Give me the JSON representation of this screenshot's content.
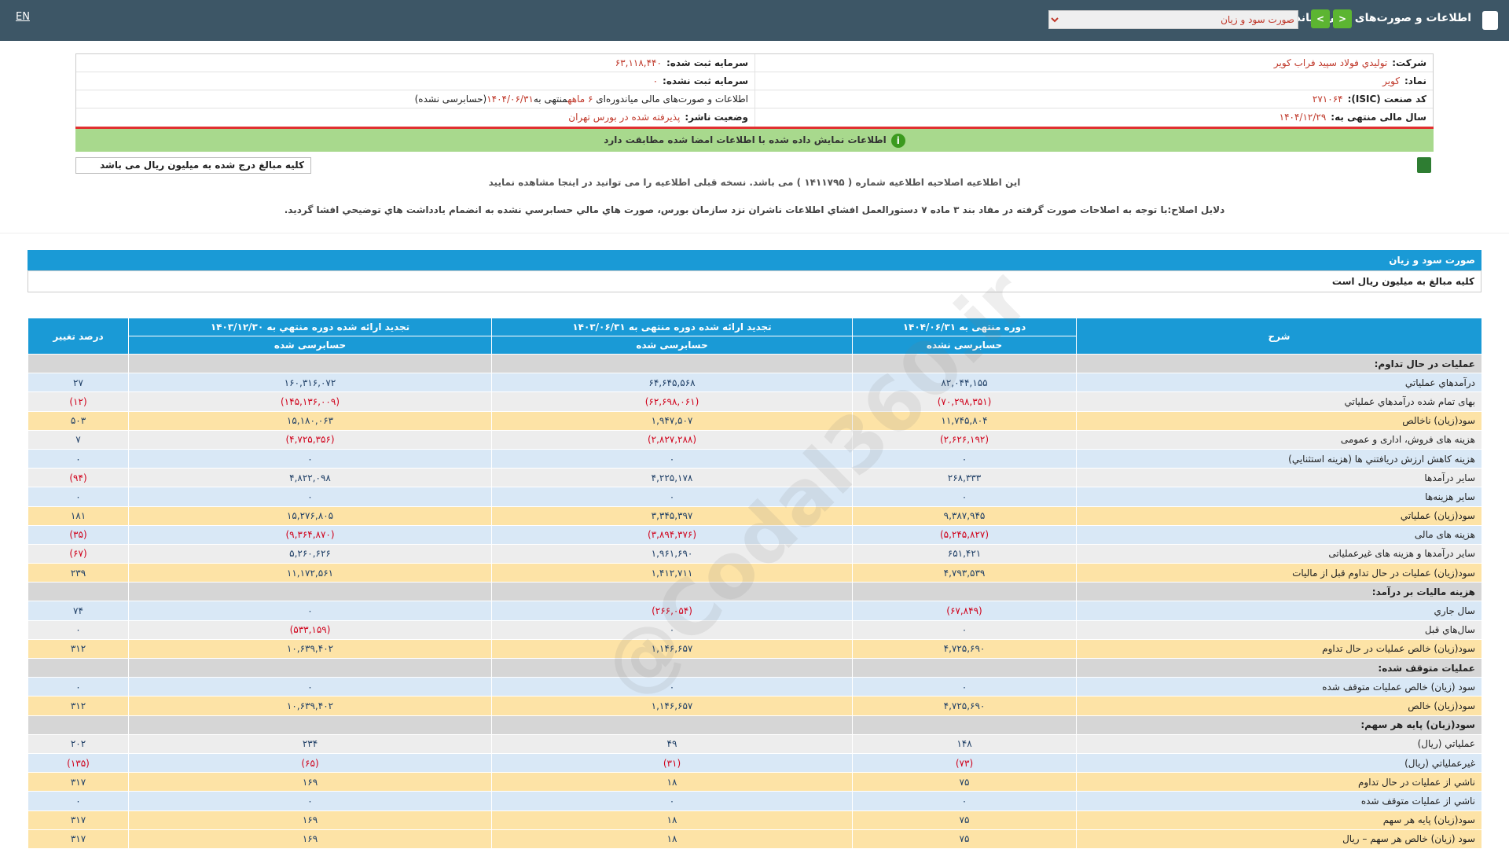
{
  "header": {
    "title": "اطلاعات و صورت‌های مالی میاندوره‌ای",
    "report_select": "صورت سود و زیان",
    "language": "EN"
  },
  "company_info": {
    "company_label": "شرکت:",
    "company": "توليدي فولاد سپيد فراب كوير",
    "symbol_label": "نماد:",
    "symbol": "کویر",
    "isic_label": "کد صنعت (ISIC):",
    "isic": "۲۷۱۰۶۴",
    "fiscal_year_label": "سال مالی منتهی به:",
    "fiscal_year": "۱۴۰۴/۱۲/۲۹",
    "registered_capital_label": "سرمایه ثبت شده:",
    "registered_capital": "۶۳,۱۱۸,۴۴۰",
    "unregistered_capital_label": "سرمایه ثبت نشده:",
    "unregistered_capital": "۰",
    "report_label": "اطلاعات و صورت‌های مالی میاندوره‌ای",
    "report_period": "۶ ماهه",
    "report_end_label": "منتهی به",
    "report_end": "۱۴۰۴/۰۶/۳۱",
    "report_status": "(حسابرسی نشده)",
    "publisher_status_label": "وضعیت ناشر:",
    "publisher_status": "پذیرفته شده در بورس تهران"
  },
  "verification": "اطلاعات نمایش داده شده با اطلاعات امضا شده مطابقت دارد",
  "units_box": "کلیه مبالغ درج شده به میلیون ریال می باشد",
  "correction_notice": "این اطلاعیه اصلاحیه اطلاعیه شماره ( ۱۴۱۱۷۹۵ ) می باشد. نسخه قبلی اطلاعیه را می توانید در اینجا مشاهده نمایید",
  "correction_reason": "دلایل اصلاح:با توجه به اصلاحات صورت گرفته در مفاد بند ۳ ماده ۷ دستورالعمل افشاي اطلاعات ناشران نزد سازمان بورس، صورت هاي مالي حسابرسي نشده به انضمام يادداشت هاي توضيحي افشا گرديد.",
  "watermark": "@Codal360.ir",
  "statement": {
    "title": "صورت سود و زیان",
    "units": "کلیه مبالغ به میلیون ریال است",
    "columns": [
      {
        "title": "شرح"
      },
      {
        "title": "دوره منتهی به ۱۴۰۴/۰۶/۳۱",
        "status": "حسابرسی نشده"
      },
      {
        "title": "تجدید ارائه شده دوره منتهی به ۱۴۰۳/۰۶/۳۱",
        "status": "حسابرسی شده"
      },
      {
        "title": "تجدید ارائه شده دوره منتهي به ۱۴۰۳/۱۲/۳۰",
        "status": "حسابرسی شده"
      },
      {
        "title": "درصد تغییر"
      }
    ],
    "rows": [
      {
        "label": "عمليات در حال تداوم:",
        "color": "#d6d6d6"
      },
      {
        "label": "درآمدهاي عملياتي",
        "values": [
          "۸۲,۰۴۴,۱۵۵",
          "۶۴,۶۴۵,۵۶۸",
          "۱۶۰,۳۱۶,۰۷۲",
          "۲۷"
        ],
        "color": "#d9e8f6"
      },
      {
        "label": "بهاى تمام شده درآمدهاي عملياتي",
        "values": [
          "(۷۰,۲۹۸,۳۵۱)",
          "(۶۲,۶۹۸,۰۶۱)",
          "(۱۴۵,۱۳۶,۰۰۹)",
          "(۱۲)"
        ],
        "color": "#ededed"
      },
      {
        "label": "سود(زيان) ناخالص",
        "values": [
          "۱۱,۷۴۵,۸۰۴",
          "۱,۹۴۷,۵۰۷",
          "۱۵,۱۸۰,۰۶۳",
          "۵۰۳"
        ],
        "color": "#fde3a6"
      },
      {
        "label": "هزينه هاى فروش، ادارى و عمومى",
        "values": [
          "(۲,۶۲۶,۱۹۲)",
          "(۲,۸۲۷,۲۸۸)",
          "(۴,۷۲۵,۳۵۶)",
          "۷"
        ],
        "color": "#ededed"
      },
      {
        "label": "هزينه کاهش ارزش دريافتني ها (هزينه استثنايي)",
        "values": [
          "۰",
          "۰",
          "۰",
          "۰"
        ],
        "color": "#d9e8f6"
      },
      {
        "label": "ساير درآمدها",
        "values": [
          "۲۶۸,۳۳۳",
          "۴,۲۲۵,۱۷۸",
          "۴,۸۲۲,۰۹۸",
          "(۹۴)"
        ],
        "color": "#ededed"
      },
      {
        "label": "ساير هزينه‌ها",
        "values": [
          "۰",
          "۰",
          "۰",
          "۰"
        ],
        "color": "#d9e8f6"
      },
      {
        "label": "سود(زيان) عملياتي",
        "values": [
          "۹,۳۸۷,۹۴۵",
          "۳,۳۴۵,۳۹۷",
          "۱۵,۲۷۶,۸۰۵",
          "۱۸۱"
        ],
        "color": "#fde3a6"
      },
      {
        "label": "هزينه هاى مالى",
        "values": [
          "(۵,۲۴۵,۸۲۷)",
          "(۳,۸۹۴,۳۷۶)",
          "(۹,۳۶۴,۸۷۰)",
          "(۳۵)"
        ],
        "color": "#d9e8f6"
      },
      {
        "label": "ساير درآمدها و هزينه هاى غيرعملياتى",
        "values": [
          "۶۵۱,۴۲۱",
          "۱,۹۶۱,۶۹۰",
          "۵,۲۶۰,۶۲۶",
          "(۶۷)"
        ],
        "color": "#ededed"
      },
      {
        "label": "سود(زيان) عمليات در حال تداوم قبل از ماليات",
        "values": [
          "۴,۷۹۳,۵۳۹",
          "۱,۴۱۲,۷۱۱",
          "۱۱,۱۷۲,۵۶۱",
          "۲۳۹"
        ],
        "color": "#fde3a6"
      },
      {
        "label": "هزينه ماليات بر درآمد:",
        "color": "#d6d6d6"
      },
      {
        "label": "سال جاري",
        "values": [
          "(۶۷,۸۴۹)",
          "(۲۶۶,۰۵۴)",
          "۰",
          "۷۴"
        ],
        "color": "#d9e8f6"
      },
      {
        "label": "سال‌هاي قبل",
        "values": [
          "۰",
          "۰",
          "(۵۳۳,۱۵۹)",
          "۰"
        ],
        "color": "#ededed"
      },
      {
        "label": "سود(زيان) خالص عمليات در حال تداوم",
        "values": [
          "۴,۷۲۵,۶۹۰",
          "۱,۱۴۶,۶۵۷",
          "۱۰,۶۳۹,۴۰۲",
          "۳۱۲"
        ],
        "color": "#fde3a6"
      },
      {
        "label": "عمليات متوقف شده:",
        "color": "#d6d6d6"
      },
      {
        "label": "سود (زيان) خالص عمليات متوقف شده",
        "values": [
          "۰",
          "۰",
          "۰",
          "۰"
        ],
        "color": "#d9e8f6"
      },
      {
        "label": "سود(زيان) خالص",
        "values": [
          "۴,۷۲۵,۶۹۰",
          "۱,۱۴۶,۶۵۷",
          "۱۰,۶۳۹,۴۰۲",
          "۳۱۲"
        ],
        "color": "#fde3a6"
      },
      {
        "label": "سود(زيان) پايه هر سهم:",
        "color": "#d6d6d6"
      },
      {
        "label": "عملياتي (ريال)",
        "values": [
          "۱۴۸",
          "۴۹",
          "۲۳۴",
          "۲۰۲"
        ],
        "color": "#ededed"
      },
      {
        "label": "غيرعملياتي (ريال)",
        "values": [
          "(۷۳)",
          "(۳۱)",
          "(۶۵)",
          "(۱۳۵)"
        ],
        "color": "#d9e8f6"
      },
      {
        "label": "ناشي از عمليات در حال تداوم",
        "values": [
          "۷۵",
          "۱۸",
          "۱۶۹",
          "۳۱۷"
        ],
        "color": "#fde3a6"
      },
      {
        "label": "ناشي از عمليات متوقف شده",
        "values": [
          "۰",
          "۰",
          "۰",
          "۰"
        ],
        "color": "#d9e8f6"
      },
      {
        "label": "سود(زيان) پايه هر سهم",
        "values": [
          "۷۵",
          "۱۸",
          "۱۶۹",
          "۳۱۷"
        ],
        "color": "#fde3a6"
      },
      {
        "label": "سود (زيان) خالص هر سهم – ريال",
        "values": [
          "۷۵",
          "۱۸",
          "۱۶۹",
          "۳۱۷"
        ],
        "color": "#fde3a6"
      }
    ]
  }
}
